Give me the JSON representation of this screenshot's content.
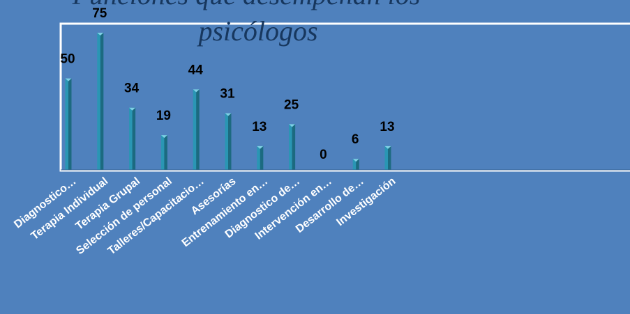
{
  "chart_data": {
    "type": "bar",
    "title_lines": [
      "Funciones que desempeñan los",
      "psicólogos"
    ],
    "categories": [
      "Diagnostico…",
      "Terapia Individual",
      "Terapia Grupal",
      "Selección de personal",
      "Talleres/Capacitacio…",
      "Asesorías",
      "Entrenamiento en…",
      "Diagnostico  de…",
      "Intervención en…",
      "Desarrollo de…",
      "Investigación"
    ],
    "values": [
      50,
      75,
      34,
      19,
      44,
      31,
      13,
      25,
      0,
      6,
      13
    ],
    "ylim": [
      0,
      75
    ],
    "grid": false,
    "legend": false
  },
  "colors": {
    "background": "#4f81bd",
    "plot_area": "#4f81bd",
    "plot_border": "#ffffff",
    "bar": "#2a96b4",
    "title": "#17375e"
  }
}
